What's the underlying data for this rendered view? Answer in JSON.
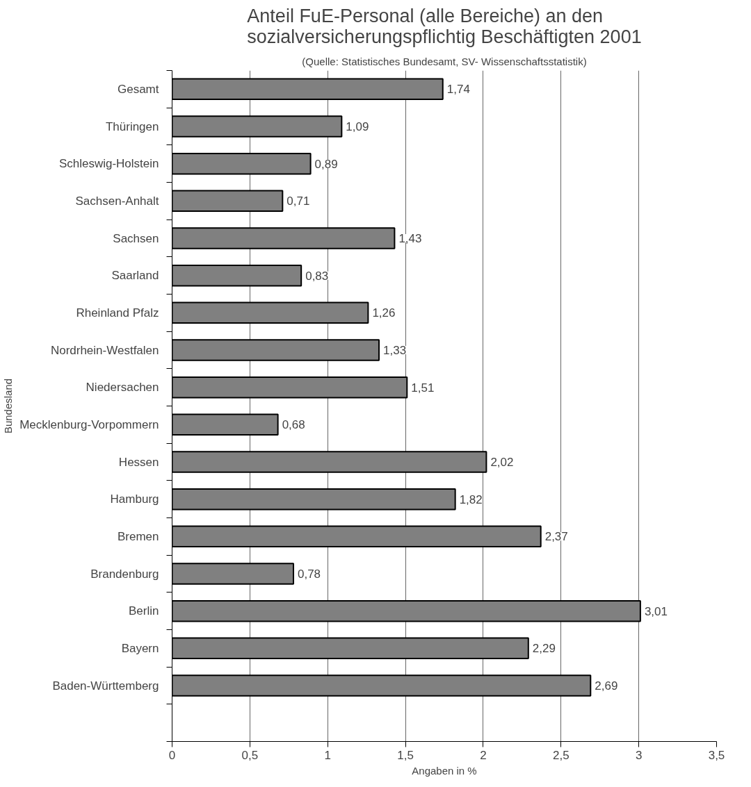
{
  "chart_data": {
    "type": "bar",
    "orientation": "horizontal",
    "title": "Anteil FuE-Personal (alle Bereiche) an den\nsozialversicherungspflichtig Beschäftigten 2001",
    "subtitle": "(Quelle: Statistisches Bundesamt, SV- Wissenschaftsstatistik)",
    "xlabel": "Angaben in %",
    "ylabel": "Bundesland",
    "categories": [
      "Gesamt",
      "Thüringen",
      "Schleswig-Holstein",
      "Sachsen-Anhalt",
      "Sachsen",
      "Saarland",
      "Rheinland Pfalz",
      "Nordrhein-Westfalen",
      "Niedersachen",
      "Mecklenburg-Vorpommern",
      "Hessen",
      "Hamburg",
      "Bremen",
      "Brandenburg",
      "Berlin",
      "Bayern",
      "Baden-Württemberg",
      null
    ],
    "values": [
      1.74,
      1.09,
      0.89,
      0.71,
      1.43,
      0.83,
      1.26,
      1.33,
      1.51,
      0.68,
      2.02,
      1.82,
      2.37,
      0.78,
      3.01,
      2.29,
      2.69,
      null
    ],
    "value_labels": [
      "1,74",
      "1,09",
      "0,89",
      "0,71",
      "1,43",
      "0,83",
      "1,26",
      "1,33",
      "1,51",
      "0,68",
      "2,02",
      "1,82",
      "2,37",
      "0,78",
      "3,01",
      "2,29",
      "2,69",
      null
    ],
    "color": "#808080",
    "xlim": [
      0,
      3.5
    ],
    "xticks": [
      0,
      {
        "value": 0.5,
        "label": "0,5"
      },
      1,
      {
        "value": 1.5,
        "label": "1,5"
      },
      2,
      {
        "value": 2.5,
        "label": "2,5"
      },
      3,
      {
        "value": 3.5,
        "label": "3,5"
      }
    ],
    "grid": "x"
  }
}
